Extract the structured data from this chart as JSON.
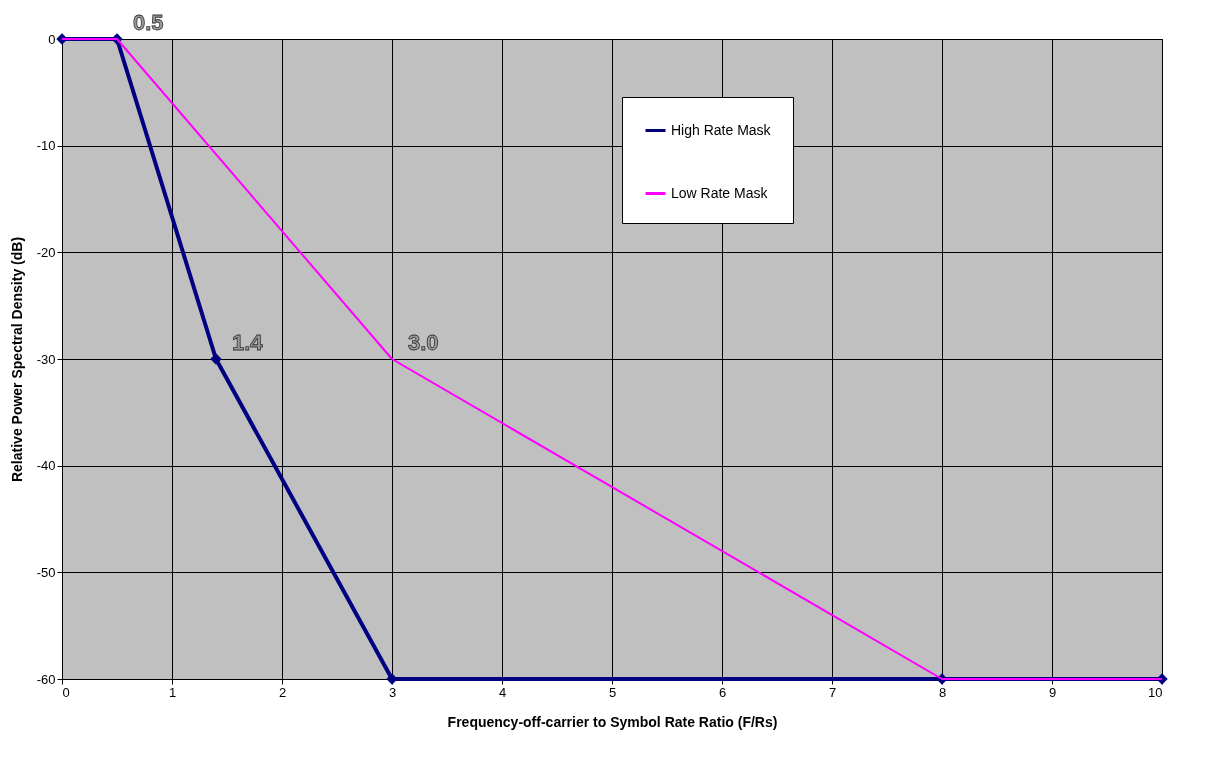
{
  "chart_data": {
    "type": "line",
    "xlabel": "Frequency-off-carrier to Symbol Rate Ratio (F/Rs)",
    "ylabel": "Relative Power Spectral Density (dB)",
    "xlim": [
      0,
      10
    ],
    "xticks": [
      0,
      1,
      2,
      3,
      4,
      5,
      6,
      7,
      8,
      9,
      10
    ],
    "ylim": [
      -60,
      0
    ],
    "yticks": [
      -60,
      -50,
      -40,
      -30,
      -20,
      -10,
      0
    ],
    "grid": true,
    "legend": "top right",
    "series": [
      {
        "name": "High Rate Mask",
        "color": "#000080",
        "marker": "diamond",
        "x": [
          0,
          0.5,
          1.4,
          3,
          8,
          10
        ],
        "values": [
          0,
          0,
          -30,
          -60,
          -60,
          -60
        ]
      },
      {
        "name": "Low Rate Mask",
        "color": "#ff00ff",
        "marker": "none",
        "x": [
          0,
          0.5,
          3,
          8,
          10
        ],
        "values": [
          0,
          0,
          -30,
          -60,
          -60
        ]
      }
    ],
    "annotations": [
      {
        "text": "0.5",
        "x": 0.5,
        "y": 0
      },
      {
        "text": "1.4",
        "x": 1.4,
        "y": -30
      },
      {
        "text": "3.0",
        "x": 3,
        "y": -30
      }
    ]
  }
}
